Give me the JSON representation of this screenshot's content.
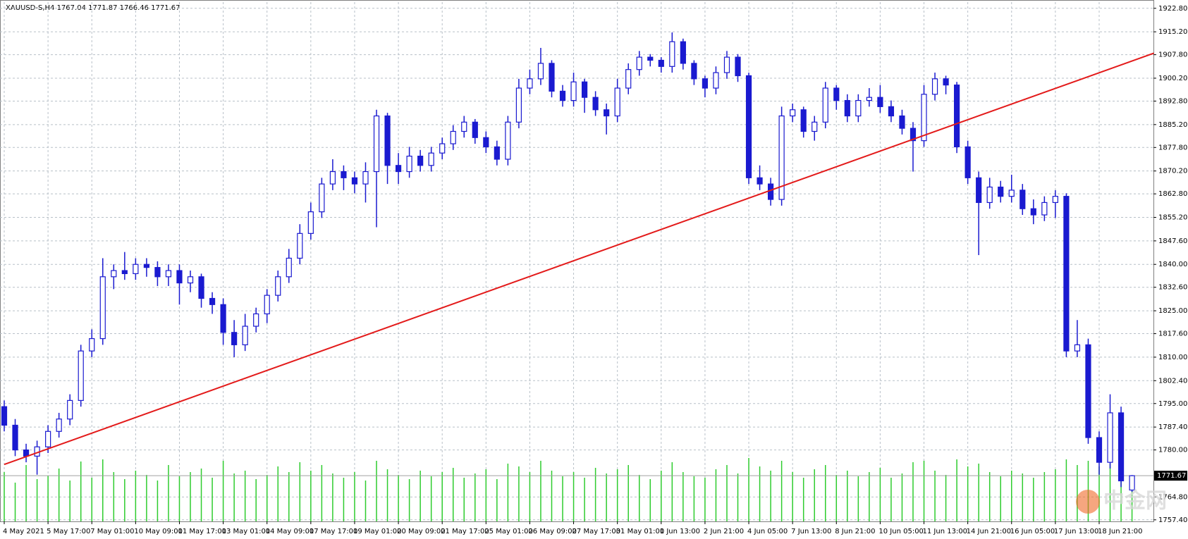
{
  "chart_data": {
    "type": "candlestick",
    "title": "XAUUSD-S,H4  1767.04 1771.87 1766.46 1771.67",
    "categories": [
      "4 May 2021",
      null,
      null,
      null,
      "5 May 17:00",
      null,
      null,
      null,
      "7 May 01:00",
      null,
      null,
      null,
      "10 May 09:00",
      null,
      null,
      null,
      "11 May 17:00",
      null,
      null,
      null,
      "13 May 01:00",
      null,
      null,
      null,
      "14 May 09:00",
      null,
      null,
      null,
      "17 May 17:00",
      null,
      null,
      null,
      "19 May 01:00",
      null,
      null,
      null,
      "20 May 09:00",
      null,
      null,
      null,
      "21 May 17:00",
      null,
      null,
      null,
      "25 May 01:00",
      null,
      null,
      null,
      "26 May 09:00",
      null,
      null,
      null,
      "27 May 17:00",
      null,
      null,
      null,
      "31 May 01:00",
      null,
      null,
      null,
      "1 Jun 13:00",
      null,
      null,
      null,
      "2 Jun 21:00",
      null,
      null,
      null,
      "4 Jun 05:00",
      null,
      null,
      null,
      "7 Jun 13:00",
      null,
      null,
      null,
      "8 Jun 21:00",
      null,
      null,
      null,
      "10 Jun 05:00",
      null,
      null,
      null,
      "11 Jun 13:00",
      null,
      null,
      null,
      "14 Jun 21:00",
      null,
      null,
      null,
      "16 Jun 05:00",
      null,
      null,
      null,
      "17 Jun 13:00",
      null,
      null,
      null,
      "18 Jun 21:00",
      null,
      null,
      null
    ],
    "ohlc": [
      [
        1794,
        1796,
        1786,
        1788
      ],
      [
        1788,
        1790,
        1778,
        1780
      ],
      [
        1780,
        1782,
        1776,
        1778
      ],
      [
        1778,
        1783,
        1772,
        1781
      ],
      [
        1781,
        1788,
        1779,
        1786
      ],
      [
        1786,
        1792,
        1784,
        1790
      ],
      [
        1790,
        1798,
        1788,
        1796
      ],
      [
        1796,
        1814,
        1794,
        1812
      ],
      [
        1812,
        1819,
        1810,
        1816
      ],
      [
        1816,
        1842,
        1814,
        1836
      ],
      [
        1836,
        1840,
        1832,
        1838
      ],
      [
        1838,
        1844,
        1835,
        1837
      ],
      [
        1837,
        1842,
        1835,
        1840
      ],
      [
        1840,
        1842,
        1836,
        1839
      ],
      [
        1839,
        1841,
        1833,
        1836
      ],
      [
        1836,
        1840,
        1833,
        1838
      ],
      [
        1838,
        1840,
        1827,
        1834
      ],
      [
        1834,
        1838,
        1831,
        1836
      ],
      [
        1836,
        1837,
        1826,
        1829
      ],
      [
        1829,
        1831,
        1824,
        1827
      ],
      [
        1827,
        1829,
        1814,
        1818
      ],
      [
        1818,
        1822,
        1810,
        1814
      ],
      [
        1814,
        1824,
        1812,
        1820
      ],
      [
        1820,
        1826,
        1818,
        1824
      ],
      [
        1824,
        1832,
        1821,
        1830
      ],
      [
        1830,
        1838,
        1828,
        1836
      ],
      [
        1836,
        1845,
        1834,
        1842
      ],
      [
        1842,
        1853,
        1840,
        1850
      ],
      [
        1850,
        1860,
        1848,
        1857
      ],
      [
        1857,
        1868,
        1855,
        1866
      ],
      [
        1866,
        1874,
        1864,
        1870
      ],
      [
        1870,
        1872,
        1864,
        1868
      ],
      [
        1868,
        1870,
        1863,
        1866
      ],
      [
        1866,
        1873,
        1860,
        1870
      ],
      [
        1870,
        1890,
        1852,
        1888
      ],
      [
        1888,
        1889,
        1866,
        1872
      ],
      [
        1872,
        1876,
        1866,
        1870
      ],
      [
        1870,
        1878,
        1868,
        1875
      ],
      [
        1875,
        1877,
        1870,
        1872
      ],
      [
        1872,
        1878,
        1870,
        1876
      ],
      [
        1876,
        1881,
        1874,
        1879
      ],
      [
        1879,
        1885,
        1877,
        1883
      ],
      [
        1883,
        1888,
        1881,
        1886
      ],
      [
        1886,
        1887,
        1879,
        1881
      ],
      [
        1881,
        1883,
        1876,
        1878
      ],
      [
        1878,
        1880,
        1872,
        1874
      ],
      [
        1874,
        1888,
        1872,
        1886
      ],
      [
        1886,
        1900,
        1884,
        1897
      ],
      [
        1897,
        1903,
        1895,
        1900
      ],
      [
        1900,
        1910,
        1898,
        1905
      ],
      [
        1905,
        1906,
        1894,
        1896
      ],
      [
        1896,
        1898,
        1891,
        1893
      ],
      [
        1893,
        1902,
        1891,
        1899
      ],
      [
        1899,
        1900,
        1889,
        1894
      ],
      [
        1894,
        1896,
        1888,
        1890
      ],
      [
        1890,
        1892,
        1882,
        1888
      ],
      [
        1888,
        1900,
        1886,
        1897
      ],
      [
        1897,
        1905,
        1895,
        1903
      ],
      [
        1903,
        1909,
        1901,
        1907
      ],
      [
        1907,
        1908,
        1904,
        1906
      ],
      [
        1906,
        1907,
        1902,
        1904
      ],
      [
        1904,
        1915,
        1902,
        1912
      ],
      [
        1912,
        1913,
        1903,
        1905
      ],
      [
        1905,
        1906,
        1898,
        1900
      ],
      [
        1900,
        1901,
        1894,
        1897
      ],
      [
        1897,
        1904,
        1895,
        1902
      ],
      [
        1902,
        1909,
        1900,
        1907
      ],
      [
        1907,
        1908,
        1899,
        1901
      ],
      [
        1901,
        1902,
        1866,
        1868
      ],
      [
        1868,
        1872,
        1864,
        1866
      ],
      [
        1866,
        1868,
        1859,
        1861
      ],
      [
        1861,
        1891,
        1859,
        1888
      ],
      [
        1888,
        1892,
        1886,
        1890
      ],
      [
        1890,
        1891,
        1881,
        1883
      ],
      [
        1883,
        1888,
        1880,
        1886
      ],
      [
        1886,
        1899,
        1884,
        1897
      ],
      [
        1897,
        1898,
        1890,
        1893
      ],
      [
        1893,
        1895,
        1886,
        1888
      ],
      [
        1888,
        1895,
        1886,
        1893
      ],
      [
        1893,
        1897,
        1891,
        1894
      ],
      [
        1894,
        1898,
        1889,
        1891
      ],
      [
        1891,
        1893,
        1886,
        1888
      ],
      [
        1888,
        1890,
        1882,
        1884
      ],
      [
        1884,
        1886,
        1870,
        1880
      ],
      [
        1880,
        1898,
        1878,
        1895
      ],
      [
        1895,
        1902,
        1893,
        1900
      ],
      [
        1900,
        1901,
        1895,
        1898
      ],
      [
        1898,
        1899,
        1876,
        1878
      ],
      [
        1878,
        1880,
        1866,
        1868
      ],
      [
        1868,
        1870,
        1843,
        1860
      ],
      [
        1860,
        1868,
        1858,
        1865
      ],
      [
        1865,
        1867,
        1860,
        1862
      ],
      [
        1862,
        1869,
        1860,
        1864
      ],
      [
        1864,
        1866,
        1856,
        1858
      ],
      [
        1858,
        1861,
        1853,
        1856
      ],
      [
        1856,
        1862,
        1854,
        1860
      ],
      [
        1860,
        1864,
        1855,
        1862
      ],
      [
        1862,
        1863,
        1810,
        1812
      ],
      [
        1812,
        1822,
        1810,
        1814
      ],
      [
        1814,
        1816,
        1782,
        1784
      ],
      [
        1784,
        1786,
        1772,
        1776
      ],
      [
        1776,
        1798,
        1774,
        1792
      ],
      [
        1792,
        1794,
        1768,
        1770
      ],
      [
        1767.04,
        1771.87,
        1766.46,
        1771.67
      ]
    ],
    "volume": [
      70,
      55,
      80,
      60,
      65,
      75,
      58,
      85,
      62,
      88,
      70,
      60,
      72,
      66,
      58,
      80,
      64,
      70,
      75,
      62,
      86,
      68,
      72,
      60,
      66,
      78,
      70,
      84,
      72,
      80,
      68,
      62,
      70,
      58,
      86,
      74,
      66,
      60,
      72,
      64,
      70,
      76,
      62,
      68,
      74,
      60,
      82,
      78,
      70,
      86,
      72,
      64,
      70,
      62,
      76,
      68,
      74,
      80,
      66,
      60,
      72,
      84,
      70,
      64,
      62,
      74,
      80,
      68,
      90,
      78,
      72,
      86,
      70,
      62,
      74,
      80,
      66,
      72,
      64,
      70,
      76,
      62,
      68,
      84,
      86,
      72,
      66,
      88,
      78,
      82,
      70,
      64,
      72,
      68,
      62,
      70,
      74,
      88,
      80,
      86,
      78,
      82,
      76,
      60
    ],
    "bull_color": "#ffffff",
    "candle_color": "#1a1ad0",
    "volume_color": "#2ecc2e",
    "ylim": [
      1756.9,
      1924.8
    ],
    "yticks": [
      {
        "value": 1922.8,
        "label": "1922.80"
      },
      {
        "value": 1915.2,
        "label": "1915.20"
      },
      {
        "value": 1907.8,
        "label": "1907.80"
      },
      {
        "value": 1900.2,
        "label": "1900.20"
      },
      {
        "value": 1892.8,
        "label": "1892.80"
      },
      {
        "value": 1885.2,
        "label": "1885.20"
      },
      {
        "value": 1877.8,
        "label": "1877.80"
      },
      {
        "value": 1870.2,
        "label": "1870.20"
      },
      {
        "value": 1862.8,
        "label": "1862.80"
      },
      {
        "value": 1855.2,
        "label": "1855.20"
      },
      {
        "value": 1847.6,
        "label": "1847.60"
      },
      {
        "value": 1840,
        "label": "1840.00"
      },
      {
        "value": 1832.6,
        "label": "1832.60"
      },
      {
        "value": 1825,
        "label": "1825.00"
      },
      {
        "value": 1817.6,
        "label": "1817.60"
      },
      {
        "value": 1810,
        "label": "1810.00"
      },
      {
        "value": 1802.4,
        "label": "1802.40"
      },
      {
        "value": 1795,
        "label": "1795.00"
      },
      {
        "value": 1787.4,
        "label": "1787.40"
      },
      {
        "value": 1780,
        "label": "1780.00"
      },
      {
        "value": 1764.8,
        "label": "1764.80"
      },
      {
        "value": 1757.4,
        "label": "1757.40"
      }
    ],
    "current_price": 1771.67,
    "trendline": {
      "color": "#e31a1a",
      "start": [
        0,
        1775.3
      ],
      "end": [
        105,
        1908.3
      ]
    },
    "grid": true,
    "watermark": "中金网"
  }
}
